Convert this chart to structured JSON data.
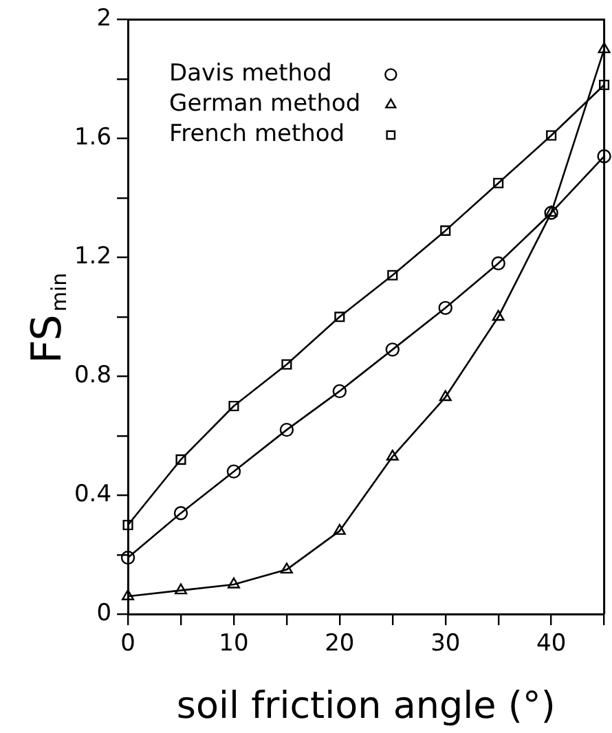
{
  "chart_data": {
    "type": "line",
    "xlabel": "soil friction angle (°)",
    "ylabel": "FS$_{min}$",
    "x": [
      0,
      5,
      10,
      15,
      20,
      25,
      30,
      35,
      40,
      45
    ],
    "series": [
      {
        "name": "Davis method",
        "color": "#000000",
        "marker": "circle",
        "values": [
          0.19,
          0.34,
          0.48,
          0.62,
          0.75,
          0.89,
          1.03,
          1.18,
          1.35,
          1.54
        ]
      },
      {
        "name": "German method",
        "color": "#000000",
        "marker": "triangle",
        "values": [
          0.06,
          0.08,
          0.1,
          0.15,
          0.28,
          0.53,
          0.73,
          1.0,
          1.35,
          1.9
        ]
      },
      {
        "name": "French method",
        "color": "#000000",
        "marker": "square",
        "values": [
          0.3,
          0.52,
          0.7,
          0.84,
          1.0,
          1.14,
          1.29,
          1.45,
          1.61,
          1.78
        ]
      }
    ],
    "xlim": [
      0,
      45
    ],
    "xticks": [
      0,
      {
        "value": 5,
        "label": null
      },
      10,
      {
        "value": 15,
        "label": null
      },
      20,
      {
        "value": 25,
        "label": null
      },
      30,
      {
        "value": 35,
        "label": null
      },
      40,
      {
        "value": 45,
        "label": null
      }
    ],
    "ylim": [
      0,
      2
    ],
    "yticks": [
      0,
      {
        "value": 0.2,
        "label": null
      },
      0.4,
      {
        "value": 0.6,
        "label": null
      },
      0.8,
      {
        "value": 1.0,
        "label": null
      },
      1.2,
      {
        "value": 1.4,
        "label": null
      },
      1.6,
      {
        "value": 1.8,
        "label": null
      },
      2
    ],
    "grid": false,
    "legend": "top left",
    "line_style": "solid"
  }
}
